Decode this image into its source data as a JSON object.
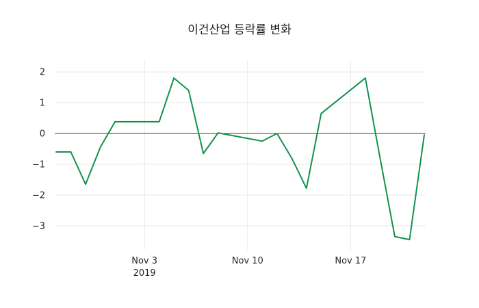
{
  "title": "이건산업 등락률 변화",
  "chart_data": {
    "type": "line",
    "title": "이건산업 등락률 변화",
    "series_name": "등락률",
    "line_color": "#12914b",
    "x": [
      "2019-10-28",
      "2019-10-29",
      "2019-10-30",
      "2019-10-31",
      "2019-11-01",
      "2019-11-04",
      "2019-11-05",
      "2019-11-06",
      "2019-11-07",
      "2019-11-08",
      "2019-11-11",
      "2019-11-12",
      "2019-11-13",
      "2019-11-14",
      "2019-11-15",
      "2019-11-18",
      "2019-11-19",
      "2019-11-20",
      "2019-11-21",
      "2019-11-22"
    ],
    "values": [
      -0.6,
      -0.6,
      -1.65,
      -0.45,
      0.38,
      0.38,
      1.8,
      1.4,
      -0.65,
      0.02,
      -0.25,
      0.0,
      -0.8,
      -1.78,
      0.65,
      1.8,
      -0.8,
      -3.35,
      -3.45,
      -0.05
    ],
    "ylim": [
      -3.78,
      2.38
    ],
    "yticks": [
      2,
      1,
      0,
      -1,
      -2,
      -3
    ],
    "ytick_labels": [
      "2",
      "1",
      "0",
      "−1",
      "−2",
      "−3"
    ],
    "xticks": [
      {
        "date": "2019-11-03",
        "label": "Nov 3",
        "sublabel": "2019"
      },
      {
        "date": "2019-11-10",
        "label": "Nov 10",
        "sublabel": ""
      },
      {
        "date": "2019-11-17",
        "label": "Nov 17",
        "sublabel": ""
      }
    ],
    "grid": true,
    "zero_line": true,
    "legend": "none",
    "grid_color": "#e8e8e8",
    "zero_line_color": "#3a3a3a",
    "tick_label_color": "#262626"
  }
}
